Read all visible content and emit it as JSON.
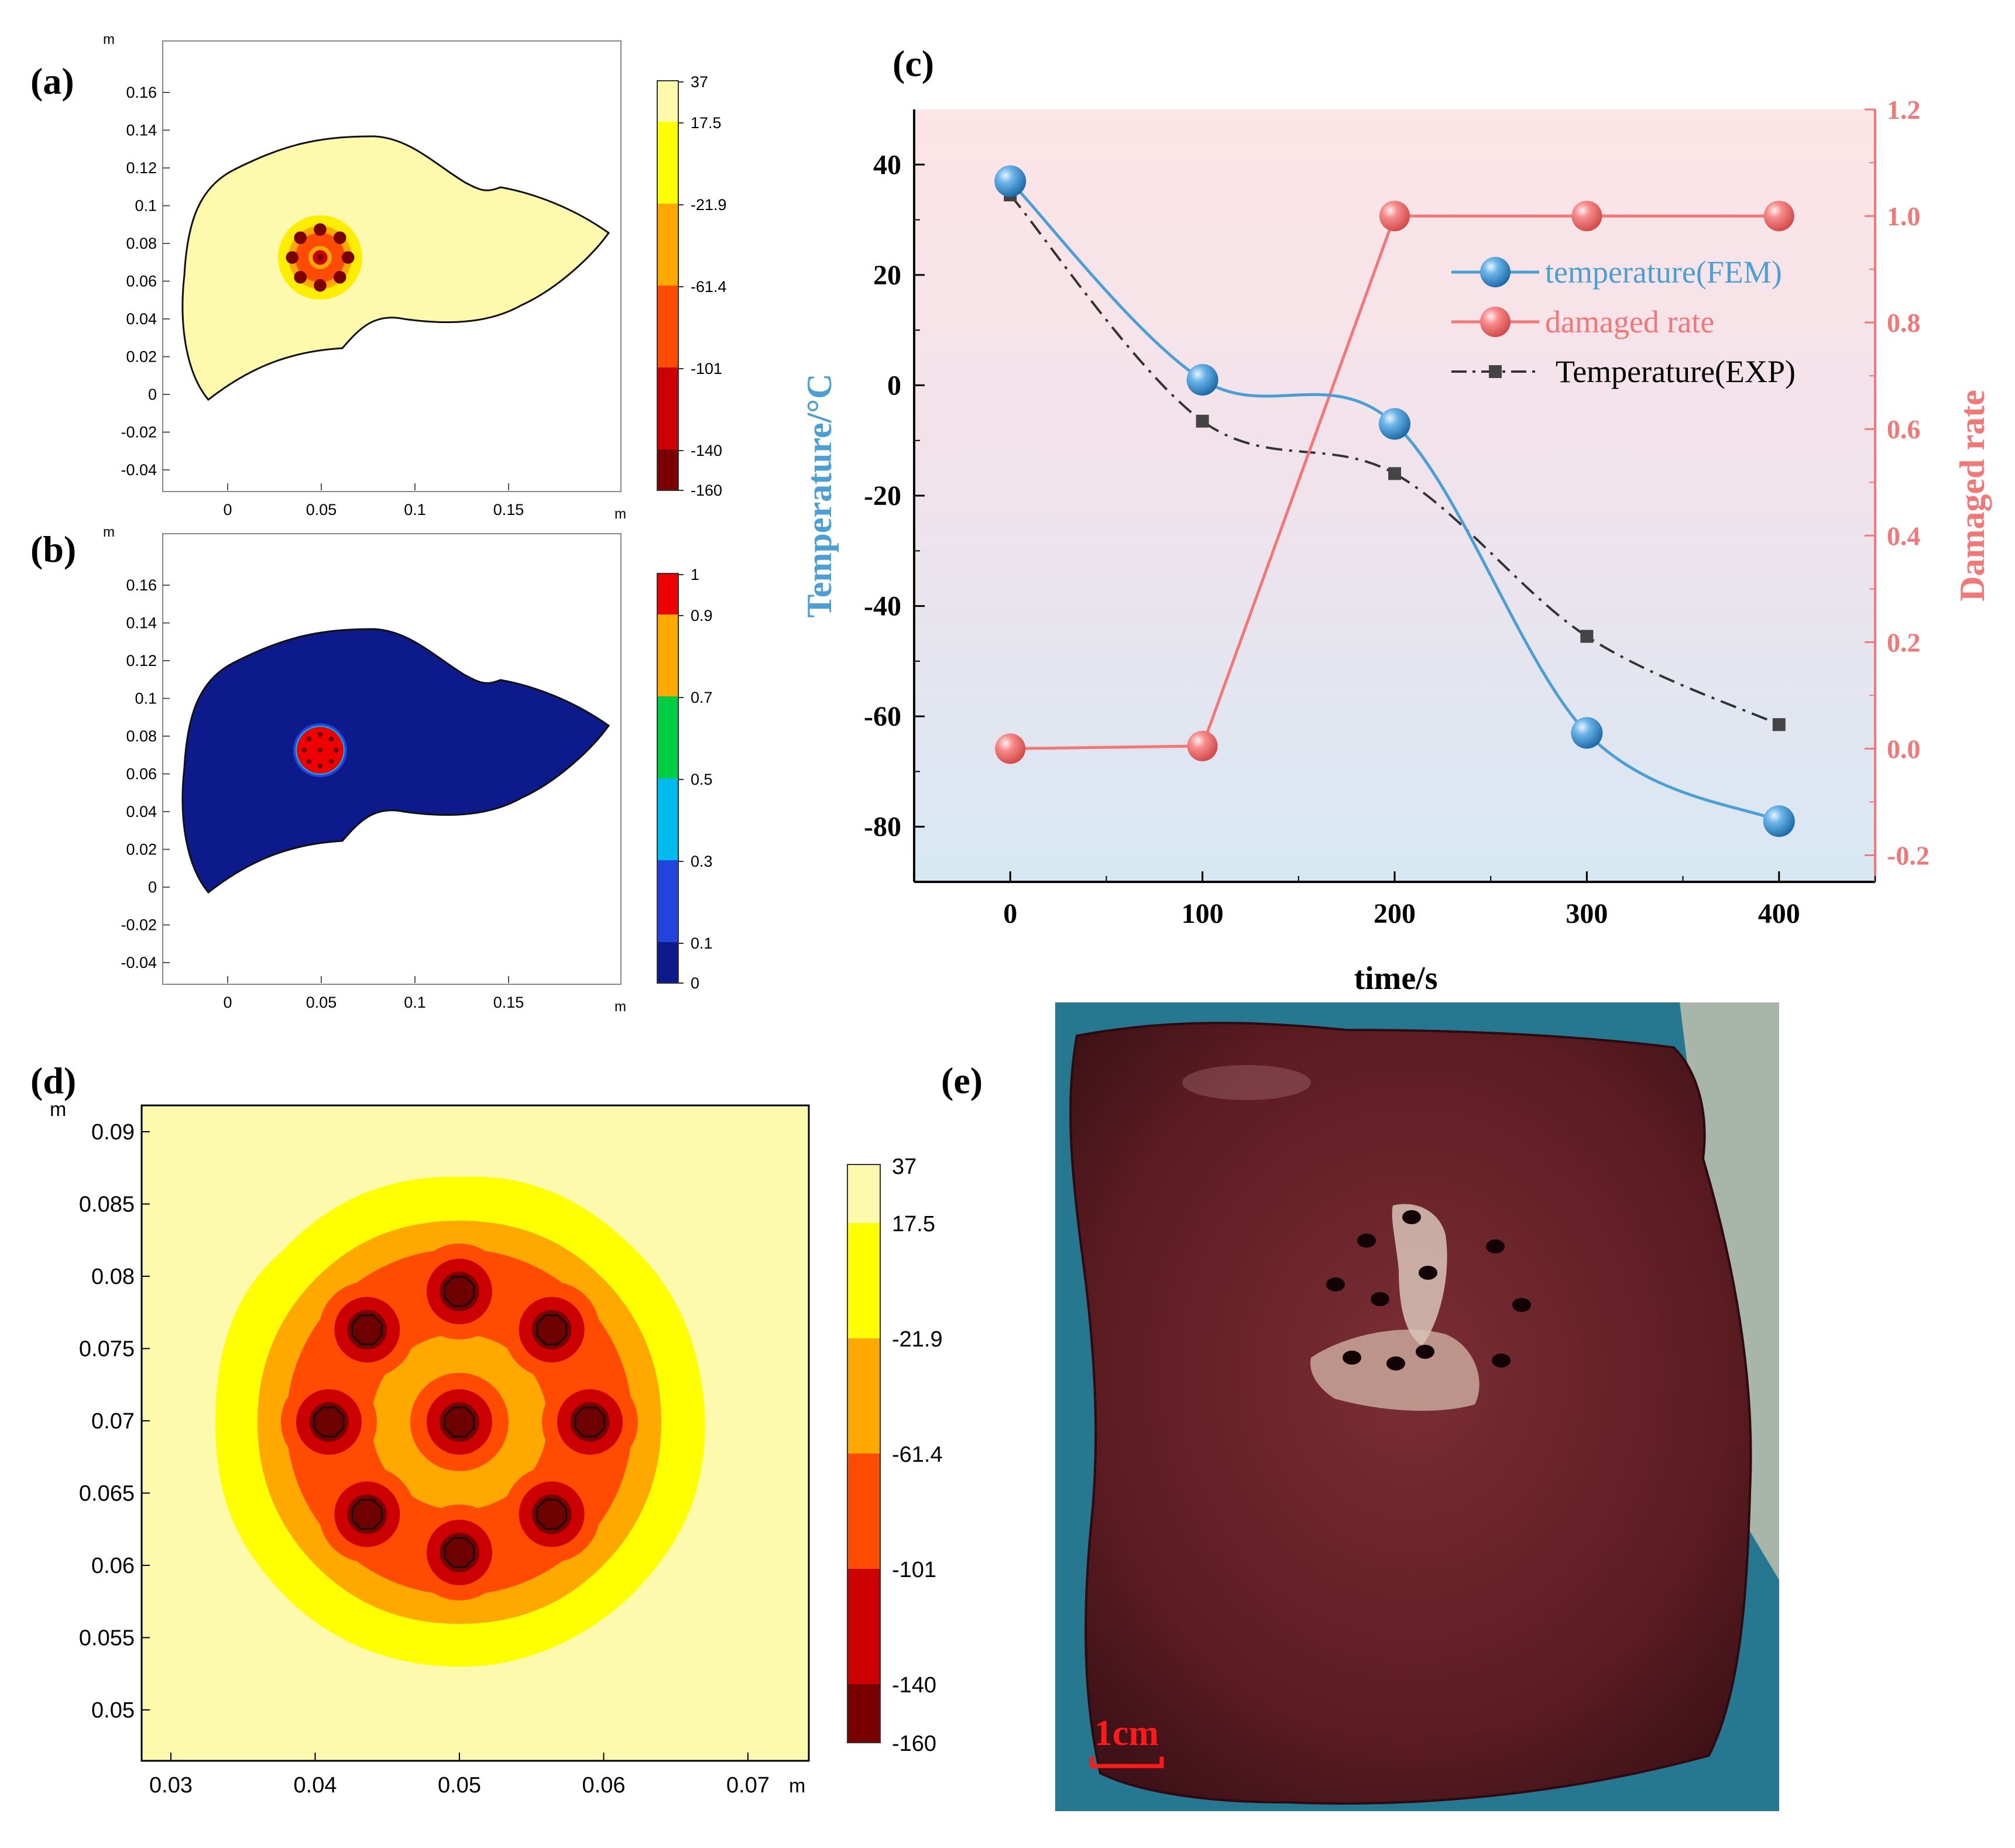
{
  "panels": {
    "a": {
      "label": "(a)",
      "unit": "m",
      "x_ticks": [
        "0",
        "0.05",
        "0.1",
        "0.15"
      ],
      "y_ticks": [
        "0.16",
        "0.14",
        "0.12",
        "0.1",
        "0.08",
        "0.06",
        "0.04",
        "0.02",
        "0",
        "-0.02",
        "-0.04"
      ],
      "colorbar": [
        "37",
        "17.5",
        "-21.9",
        "-61.4",
        "-101",
        "-140",
        "-160"
      ],
      "colors": [
        "#fdfaae",
        "#ffff00",
        "#ffa800",
        "#ff4c00",
        "#cc0000",
        "#7a0000"
      ]
    },
    "b": {
      "label": "(b)",
      "unit": "m",
      "x_ticks": [
        "0",
        "0.05",
        "0.1",
        "0.15"
      ],
      "y_ticks": [
        "0.16",
        "0.14",
        "0.12",
        "0.1",
        "0.08",
        "0.06",
        "0.04",
        "0.02",
        "0",
        "-0.02",
        "-0.04"
      ],
      "colorbar": [
        "1",
        "0.9",
        "0.7",
        "0.5",
        "0.3",
        "0.1",
        "0"
      ],
      "colors": [
        "#ee0000",
        "#ffaa00",
        "#00cc44",
        "#00bbee",
        "#2244dd",
        "#0d1a8c"
      ]
    },
    "d": {
      "label": "(d)",
      "unit": "m",
      "x_ticks": [
        "0.03",
        "0.04",
        "0.05",
        "0.06",
        "0.07"
      ],
      "y_ticks": [
        "0.09",
        "0.085",
        "0.08",
        "0.075",
        "0.07",
        "0.065",
        "0.06",
        "0.055",
        "0.05"
      ],
      "colorbar": [
        "37",
        "17.5",
        "-21.9",
        "-61.4",
        "-101",
        "-140",
        "-160"
      ]
    },
    "e": {
      "label": "(e)",
      "scale_label": "1cm"
    }
  },
  "chart_data": {
    "type": "line",
    "label": "(c)",
    "title": "",
    "xlabel": "time/s",
    "ylabel": "Temperature/°C",
    "y2label": "Damaged rate",
    "x_ticks": [
      "0",
      "100",
      "200",
      "300",
      "400"
    ],
    "y_ticks": [
      "40",
      "20",
      "0",
      "-20",
      "-40",
      "-60",
      "-80"
    ],
    "y2_ticks": [
      "1.2",
      "1.0",
      "0.8",
      "0.6",
      "0.4",
      "0.2",
      "0.0",
      "-0.2"
    ],
    "xlim": [
      -50,
      450
    ],
    "ylim": [
      -90,
      50
    ],
    "y2lim": [
      -0.25,
      1.2
    ],
    "legend_position": "top-right",
    "series": [
      {
        "name": "temperature(FEM)",
        "axis": "left",
        "color": "#4a9fd4",
        "x": [
          0,
          100,
          200,
          300,
          400
        ],
        "values": [
          37,
          1,
          -7,
          -63,
          -79
        ]
      },
      {
        "name": "damaged rate",
        "axis": "right",
        "color": "#f27878",
        "x": [
          0,
          100,
          200,
          300,
          400
        ],
        "values": [
          0.0,
          0.005,
          1.0,
          1.0,
          1.0
        ]
      },
      {
        "name": "Temperature(EXP)",
        "axis": "left",
        "color": "#333333",
        "x": [
          0,
          100,
          200,
          300,
          400
        ],
        "values": [
          34.5,
          -6.5,
          -16,
          -45.5,
          -61.5
        ]
      }
    ]
  }
}
